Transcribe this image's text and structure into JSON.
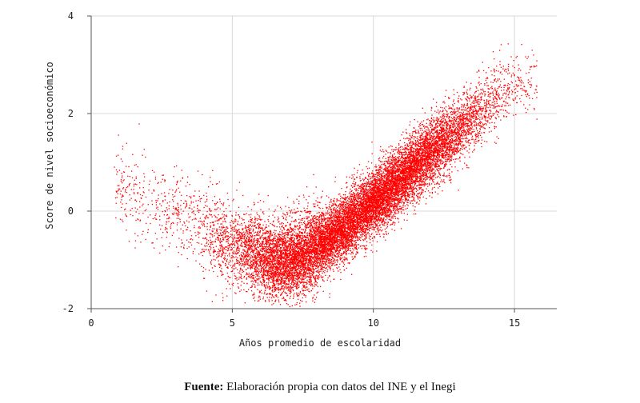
{
  "chart_data": {
    "type": "scatter",
    "title": "",
    "xlabel": "Años promedio de escolaridad",
    "ylabel": "Score de nivel socioeconómico",
    "xlim": [
      0,
      16.5
    ],
    "ylim": [
      -2,
      4
    ],
    "xticks": [
      0,
      5,
      10,
      15
    ],
    "yticks": [
      -2,
      0,
      2,
      4
    ],
    "grid": true,
    "point_color": "#ff0000",
    "approx_point_count": 50000,
    "trend": [
      {
        "x": 1,
        "y": 0.5
      },
      {
        "x": 3,
        "y": 0.0
      },
      {
        "x": 5,
        "y": -0.7
      },
      {
        "x": 6.5,
        "y": -1.05
      },
      {
        "x": 7.5,
        "y": -0.9
      },
      {
        "x": 9,
        "y": -0.3
      },
      {
        "x": 10,
        "y": 0.2
      },
      {
        "x": 11,
        "y": 0.7
      },
      {
        "x": 12,
        "y": 1.2
      },
      {
        "x": 13,
        "y": 1.65
      },
      {
        "x": 14,
        "y": 2.2
      },
      {
        "x": 15,
        "y": 2.6
      }
    ]
  },
  "source": {
    "label": "Fuente:",
    "text": " Elaboración propia con datos del INE y el Inegi"
  }
}
